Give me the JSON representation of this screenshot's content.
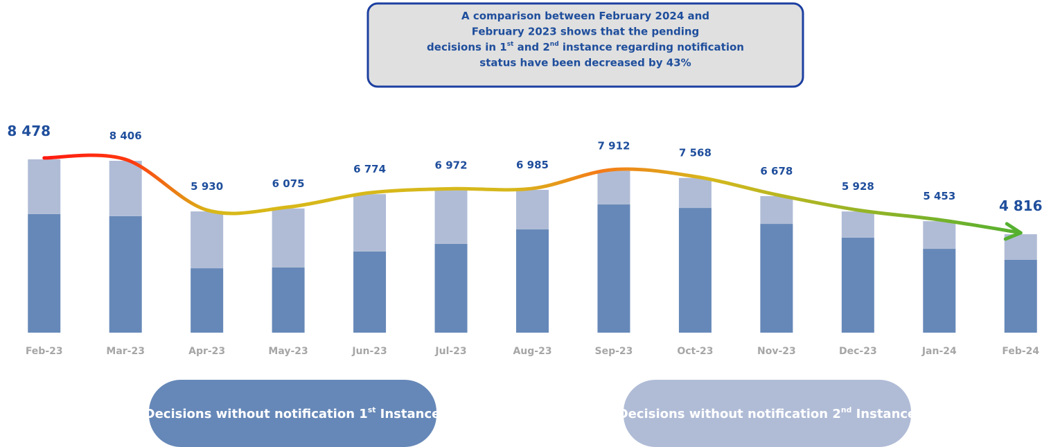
{
  "chart_data": {
    "type": "bar",
    "stacked": true,
    "annotation": [
      "A comparison between February 2024 and",
      "February 2023 shows that the pending",
      "decisions in 1st and 2nd instance regarding notification",
      "status have been decreased by 43%"
    ],
    "categories": [
      "Feb-23",
      "Mar-23",
      "Apr-23",
      "May-23",
      "Jun-23",
      "Jul-23",
      "Aug-23",
      "Sep-23",
      "Oct-23",
      "Nov-23",
      "Dec-23",
      "Jan-24",
      "Feb-24"
    ],
    "series": [
      {
        "name": "Decisions without notification 1st Instance",
        "color": "#6688b8",
        "values": [
          5800,
          5700,
          3150,
          3190,
          3970,
          4340,
          5050,
          6270,
          6100,
          5320,
          4650,
          4100,
          3560
        ]
      },
      {
        "name": "Decisions without notification 2nd Instance",
        "color": "#b0bcd6",
        "values": [
          2678,
          2706,
          2780,
          2885,
          2804,
          2632,
          1935,
          1642,
          1468,
          1358,
          1278,
          1353,
          1256
        ]
      }
    ],
    "totals": {
      "values": [
        8478,
        8406,
        5930,
        6075,
        6774,
        6972,
        6985,
        7912,
        7568,
        6678,
        5928,
        5453,
        4816
      ],
      "value_labels": [
        "8 478",
        "8 406",
        "5 930",
        "6 075",
        "6 774",
        "6 972",
        "6 985",
        "7 912",
        "7 568",
        "6 678",
        "5 928",
        "5 453",
        "4 816"
      ]
    },
    "ylim": [
      0,
      10000
    ]
  }
}
